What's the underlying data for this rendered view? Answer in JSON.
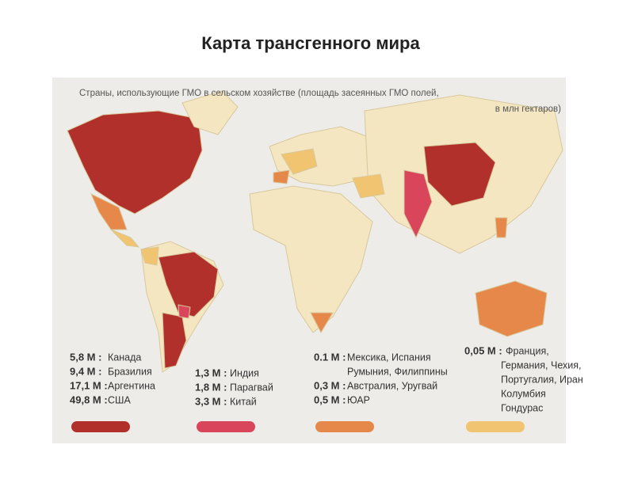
{
  "title": "Карта трансгенного мира",
  "map": {
    "caption": [
      "Страны, использующие ГМО в сельском хозяйстве (площадь засеянных ГМО полей,",
      "в млн гектаров)"
    ],
    "legend": [
      {
        "color": "#b2302b",
        "entries": [
          {
            "amount": "5,8 M :",
            "countries": [
              "Канада"
            ]
          },
          {
            "amount": "9,4 M :",
            "countries": [
              "Бразилия"
            ]
          },
          {
            "amount": "17,1 M :",
            "countries": [
              "Аргентина"
            ]
          },
          {
            "amount": "49,8 M :",
            "countries": [
              "США"
            ]
          }
        ]
      },
      {
        "color": "#d9455a",
        "entries": [
          {
            "amount": "1,3 M :",
            "countries": [
              "Индия"
            ]
          },
          {
            "amount": "1,8 M :",
            "countries": [
              "Парагвай"
            ]
          },
          {
            "amount": "3,3 M :",
            "countries": [
              "Китай"
            ]
          }
        ]
      },
      {
        "color": "#e6884a",
        "entries": [
          {
            "amount": "0.1 M :",
            "countries": [
              "Мексика, Испания",
              "Румыния, Филиппины"
            ]
          },
          {
            "amount": "0,3 M :",
            "countries": [
              "Австралия, Уругвай"
            ]
          },
          {
            "amount": "0,5 M :",
            "countries": [
              "ЮАР"
            ]
          }
        ]
      },
      {
        "color": "#f0c470",
        "entries": [
          {
            "amount": "0,05 M :",
            "countries": [
              "Франция,",
              "Германия, Чехия,",
              "Португалия, Иран",
              "Колумбия",
              "Гондурас"
            ]
          }
        ]
      }
    ]
  }
}
